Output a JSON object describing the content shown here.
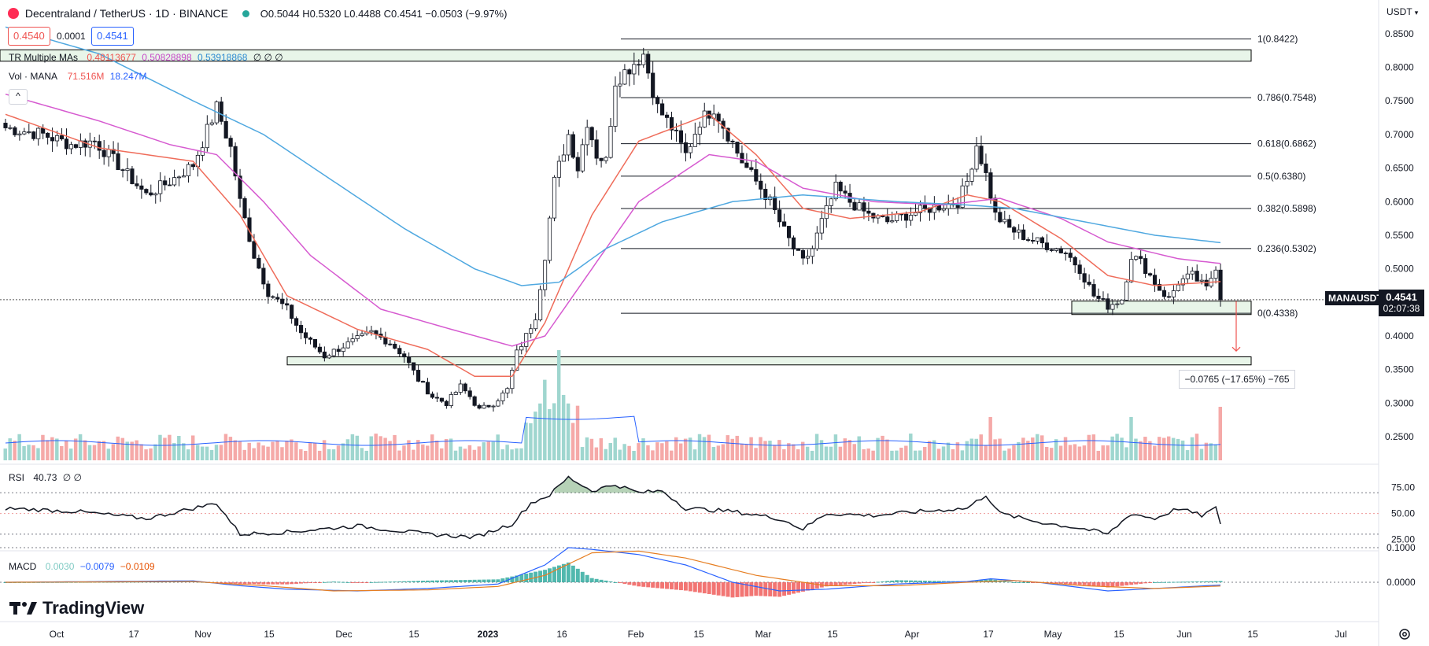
{
  "header": {
    "symbol_title": "Decentraland / TetherUS · 1D · BINANCE",
    "ohlc": "O0.5044 H0.5320 L0.4488 C0.4541 −0.0503 (−9.97%)",
    "bid": "0.4540",
    "spread": "0.0001",
    "ask": "0.4541",
    "currency": "USDT",
    "ma_label": "TR Multiple MAs",
    "ma_values": [
      "0.48113677",
      "0.50828898",
      "0.53918868"
    ],
    "ma_zeros": "∅ ∅ ∅",
    "vol_label": "Vol · MANA",
    "vol_values": [
      "71.516M",
      "18.247M"
    ],
    "collapse_glyph": "^"
  },
  "rsi_panel": {
    "label": "RSI",
    "value": "40.73",
    "zeros": "∅ ∅"
  },
  "macd_panel": {
    "label": "MACD",
    "values": [
      "0.0030",
      "−0.0079",
      "−0.0109"
    ]
  },
  "last_price": {
    "symbol": "MANAUSDT",
    "price": "0.4541",
    "countdown": "02:07:38"
  },
  "measure": {
    "text": "−0.0765 (−17.65%) −765"
  },
  "watermark": "TradingView",
  "colors": {
    "up": "#26a69a",
    "down": "#ef5350",
    "ma1": "#ef6c5a",
    "ma2": "#d65ad0",
    "ma3": "#4fa8e0",
    "fib_box": "#e8f5e9",
    "fib_box_border": "#000000",
    "rsi_fill": "#2e7d32"
  },
  "chart_data": {
    "type": "candlestick",
    "price_axis": {
      "ticks": [
        "0.8500",
        "0.8000",
        "0.7500",
        "0.7000",
        "0.6500",
        "0.6000",
        "0.5500",
        "0.5000",
        "0.4500",
        "0.4000",
        "0.3500",
        "0.3000",
        "0.2500"
      ],
      "ylim": [
        0.215,
        0.865
      ]
    },
    "time_axis": {
      "ticks": [
        "Oct",
        "17",
        "Nov",
        "15",
        "Dec",
        "15",
        "2023",
        "16",
        "Feb",
        "15",
        "Mar",
        "15",
        "Apr",
        "17",
        "May",
        "15",
        "Jun",
        "15",
        "Jul"
      ]
    },
    "fibonacci": [
      {
        "label": "1(0.8422)",
        "value": 0.8422
      },
      {
        "label": "0.786(0.7548)",
        "value": 0.7548
      },
      {
        "label": "0.618(0.6862)",
        "value": 0.6862
      },
      {
        "label": "0.5(0.6380)",
        "value": 0.638
      },
      {
        "label": "0.382(0.5898)",
        "value": 0.5898
      },
      {
        "label": "0.236(0.5302)",
        "value": 0.5302
      },
      {
        "label": "0(0.4338)",
        "value": 0.4338
      }
    ],
    "zones": [
      {
        "from": 0.809,
        "to": 0.826
      },
      {
        "from": 0.432,
        "to": 0.452
      },
      {
        "from": 0.357,
        "to": 0.369
      }
    ],
    "rsi_axis": {
      "ticks": [
        "75.00",
        "50.00",
        "25.00"
      ],
      "levels": [
        70,
        50,
        30
      ]
    },
    "macd_axis": {
      "ticks": [
        "0.1000",
        "0.0000"
      ]
    },
    "price_path": [
      [
        0,
        0.71
      ],
      [
        8,
        0.7
      ],
      [
        14,
        0.685
      ],
      [
        19,
        0.69
      ],
      [
        24,
        0.655
      ],
      [
        30,
        0.61
      ],
      [
        35,
        0.63
      ],
      [
        40,
        0.655
      ],
      [
        45,
        0.74
      ],
      [
        48,
        0.68
      ],
      [
        50,
        0.6
      ],
      [
        53,
        0.52
      ],
      [
        56,
        0.465
      ],
      [
        60,
        0.44
      ],
      [
        63,
        0.405
      ],
      [
        68,
        0.37
      ],
      [
        72,
        0.385
      ],
      [
        75,
        0.395
      ],
      [
        78,
        0.405
      ],
      [
        82,
        0.39
      ],
      [
        85,
        0.37
      ],
      [
        88,
        0.335
      ],
      [
        91,
        0.31
      ],
      [
        94,
        0.3
      ],
      [
        97,
        0.325
      ],
      [
        99,
        0.31
      ],
      [
        101,
        0.29
      ],
      [
        104,
        0.3
      ],
      [
        107,
        0.32
      ],
      [
        109,
        0.375
      ],
      [
        111,
        0.4
      ],
      [
        113,
        0.43
      ],
      [
        115,
        0.52
      ],
      [
        117,
        0.63
      ],
      [
        120,
        0.7
      ],
      [
        122,
        0.65
      ],
      [
        124,
        0.72
      ],
      [
        126,
        0.67
      ],
      [
        128,
        0.66
      ],
      [
        130,
        0.78
      ],
      [
        133,
        0.8
      ],
      [
        136,
        0.82
      ],
      [
        139,
        0.74
      ],
      [
        142,
        0.71
      ],
      [
        145,
        0.67
      ],
      [
        148,
        0.72
      ],
      [
        151,
        0.74
      ],
      [
        154,
        0.7
      ],
      [
        157,
        0.66
      ],
      [
        160,
        0.63
      ],
      [
        163,
        0.6
      ],
      [
        165,
        0.57
      ],
      [
        168,
        0.53
      ],
      [
        170,
        0.51
      ],
      [
        172,
        0.53
      ],
      [
        174,
        0.57
      ],
      [
        177,
        0.62
      ],
      [
        180,
        0.6
      ],
      [
        184,
        0.58
      ],
      [
        188,
        0.57
      ],
      [
        192,
        0.58
      ],
      [
        197,
        0.59
      ],
      [
        200,
        0.595
      ],
      [
        203,
        0.6
      ],
      [
        205,
        0.63
      ],
      [
        207,
        0.685
      ],
      [
        209,
        0.64
      ],
      [
        211,
        0.58
      ],
      [
        214,
        0.56
      ],
      [
        218,
        0.545
      ],
      [
        222,
        0.535
      ],
      [
        226,
        0.525
      ],
      [
        229,
        0.5
      ],
      [
        232,
        0.46
      ],
      [
        235,
        0.445
      ],
      [
        238,
        0.455
      ],
      [
        240,
        0.52
      ],
      [
        242,
        0.51
      ],
      [
        244,
        0.49
      ],
      [
        246,
        0.47
      ],
      [
        248,
        0.455
      ],
      [
        250,
        0.48
      ],
      [
        253,
        0.49
      ],
      [
        256,
        0.47
      ],
      [
        258,
        0.5044
      ],
      [
        259,
        0.4541
      ]
    ],
    "ma_paths": [
      {
        "name": "0.48113677",
        "points": [
          [
            0,
            0.73
          ],
          [
            20,
            0.68
          ],
          [
            40,
            0.66
          ],
          [
            50,
            0.58
          ],
          [
            60,
            0.46
          ],
          [
            75,
            0.41
          ],
          [
            90,
            0.38
          ],
          [
            100,
            0.34
          ],
          [
            108,
            0.34
          ],
          [
            115,
            0.42
          ],
          [
            125,
            0.58
          ],
          [
            135,
            0.69
          ],
          [
            150,
            0.73
          ],
          [
            160,
            0.67
          ],
          [
            170,
            0.59
          ],
          [
            180,
            0.575
          ],
          [
            195,
            0.585
          ],
          [
            205,
            0.61
          ],
          [
            212,
            0.6
          ],
          [
            225,
            0.545
          ],
          [
            235,
            0.49
          ],
          [
            245,
            0.475
          ],
          [
            259,
            0.481
          ]
        ]
      },
      {
        "name": "0.50828898",
        "points": [
          [
            0,
            0.76
          ],
          [
            20,
            0.72
          ],
          [
            35,
            0.685
          ],
          [
            45,
            0.67
          ],
          [
            55,
            0.6
          ],
          [
            65,
            0.52
          ],
          [
            80,
            0.44
          ],
          [
            95,
            0.41
          ],
          [
            108,
            0.385
          ],
          [
            115,
            0.4
          ],
          [
            125,
            0.5
          ],
          [
            135,
            0.6
          ],
          [
            150,
            0.67
          ],
          [
            160,
            0.66
          ],
          [
            170,
            0.62
          ],
          [
            185,
            0.6
          ],
          [
            200,
            0.595
          ],
          [
            212,
            0.605
          ],
          [
            225,
            0.575
          ],
          [
            235,
            0.54
          ],
          [
            250,
            0.515
          ],
          [
            259,
            0.508
          ]
        ]
      },
      {
        "name": "0.53918868",
        "points": [
          [
            0,
            0.86
          ],
          [
            20,
            0.82
          ],
          [
            40,
            0.75
          ],
          [
            55,
            0.7
          ],
          [
            70,
            0.63
          ],
          [
            85,
            0.56
          ],
          [
            100,
            0.5
          ],
          [
            110,
            0.475
          ],
          [
            118,
            0.48
          ],
          [
            128,
            0.53
          ],
          [
            140,
            0.57
          ],
          [
            155,
            0.6
          ],
          [
            170,
            0.61
          ],
          [
            190,
            0.6
          ],
          [
            205,
            0.595
          ],
          [
            215,
            0.59
          ],
          [
            230,
            0.57
          ],
          [
            245,
            0.55
          ],
          [
            259,
            0.539
          ]
        ]
      }
    ],
    "rsi_path": [
      [
        0,
        55
      ],
      [
        15,
        52
      ],
      [
        30,
        45
      ],
      [
        45,
        60
      ],
      [
        50,
        30
      ],
      [
        60,
        32
      ],
      [
        75,
        38
      ],
      [
        90,
        30
      ],
      [
        100,
        27
      ],
      [
        108,
        40
      ],
      [
        112,
        60
      ],
      [
        116,
        68
      ],
      [
        120,
        85
      ],
      [
        125,
        72
      ],
      [
        130,
        78
      ],
      [
        135,
        70
      ],
      [
        140,
        72
      ],
      [
        145,
        55
      ],
      [
        155,
        52
      ],
      [
        165,
        45
      ],
      [
        170,
        35
      ],
      [
        175,
        50
      ],
      [
        185,
        48
      ],
      [
        195,
        52
      ],
      [
        205,
        55
      ],
      [
        209,
        68
      ],
      [
        212,
        50
      ],
      [
        220,
        42
      ],
      [
        230,
        35
      ],
      [
        235,
        30
      ],
      [
        240,
        50
      ],
      [
        245,
        45
      ],
      [
        250,
        55
      ],
      [
        255,
        48
      ],
      [
        258,
        55
      ],
      [
        259,
        40.73
      ]
    ],
    "macd_lines": [
      {
        "name": "0.0030",
        "points": [
          [
            0,
            0
          ],
          [
            40,
            0.004
          ],
          [
            50,
            -0.01
          ],
          [
            60,
            -0.02
          ],
          [
            75,
            -0.025
          ],
          [
            90,
            -0.018
          ],
          [
            105,
            -0.005
          ],
          [
            115,
            0.05
          ],
          [
            120,
            0.1
          ],
          [
            125,
            0.095
          ],
          [
            135,
            0.08
          ],
          [
            145,
            0.05
          ],
          [
            155,
            0.0
          ],
          [
            165,
            -0.025
          ],
          [
            175,
            -0.02
          ],
          [
            190,
            -0.005
          ],
          [
            205,
            0.002
          ],
          [
            210,
            0.01
          ],
          [
            220,
            0.0
          ],
          [
            235,
            -0.025
          ],
          [
            245,
            -0.018
          ],
          [
            259,
            -0.0079
          ]
        ]
      },
      {
        "name": "−0.0109",
        "points": [
          [
            0,
            0
          ],
          [
            40,
            0.002
          ],
          [
            55,
            -0.01
          ],
          [
            70,
            -0.025
          ],
          [
            90,
            -0.022
          ],
          [
            105,
            -0.012
          ],
          [
            115,
            0.02
          ],
          [
            125,
            0.085
          ],
          [
            135,
            0.09
          ],
          [
            145,
            0.07
          ],
          [
            160,
            0.02
          ],
          [
            175,
            -0.01
          ],
          [
            190,
            -0.01
          ],
          [
            205,
            0.0
          ],
          [
            215,
            0.005
          ],
          [
            230,
            -0.01
          ],
          [
            245,
            -0.018
          ],
          [
            259,
            -0.0109
          ]
        ]
      }
    ]
  }
}
